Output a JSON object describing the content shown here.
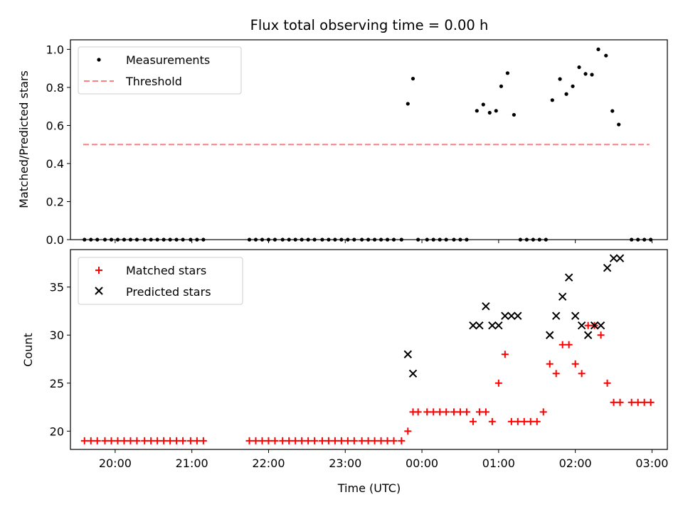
{
  "chart_data": [
    {
      "type": "scatter",
      "title": "Flux total observing time = 0.00 h",
      "xlabel": "",
      "ylabel": "Matched/Predicted stars",
      "ylim": [
        0,
        1.05
      ],
      "yticks": [
        "0.0",
        "0.2",
        "0.4",
        "0.6",
        "0.8",
        "1.0"
      ],
      "ytick_values": [
        0,
        0.2,
        0.4,
        0.6,
        0.8,
        1.0
      ],
      "legend": {
        "position": "top-left",
        "entries": [
          "Measurements",
          "Threshold"
        ]
      },
      "colors": {
        "measurements": "#000000",
        "threshold": "#ff7f7f"
      },
      "threshold": {
        "name": "Threshold",
        "value": 0.5,
        "x_start": "19:35",
        "x_end": "02:58"
      },
      "series": [
        {
          "name": "Measurements",
          "x": [
            "19:36",
            "19:41",
            "19:46",
            "19:52",
            "19:57",
            "20:02",
            "20:07",
            "20:12",
            "20:17",
            "20:23",
            "20:28",
            "20:33",
            "20:38",
            "20:43",
            "20:48",
            "20:53",
            "20:59",
            "21:04",
            "21:09",
            "21:45",
            "21:50",
            "21:55",
            "22:00",
            "22:05",
            "22:11",
            "22:16",
            "22:21",
            "22:26",
            "22:31",
            "22:36",
            "22:42",
            "22:47",
            "22:52",
            "22:57",
            "23:02",
            "23:07",
            "23:13",
            "23:18",
            "23:23",
            "23:28",
            "23:33",
            "23:38",
            "23:44",
            "23:49",
            "23:53",
            "23:57",
            "00:04",
            "00:09",
            "00:14",
            "00:19",
            "00:25",
            "00:30",
            "00:35",
            "00:43",
            "00:48",
            "00:53",
            "00:58",
            "01:02",
            "01:07",
            "01:12",
            "01:17",
            "01:22",
            "01:27",
            "01:32",
            "01:37",
            "01:42",
            "01:48",
            "01:53",
            "01:58",
            "02:03",
            "02:08",
            "02:13",
            "02:18",
            "02:24",
            "02:29",
            "02:34",
            "02:44",
            "02:49",
            "02:54",
            "02:59"
          ],
          "y": [
            0,
            0,
            0,
            0,
            0,
            0,
            0,
            0,
            0,
            0,
            0,
            0,
            0,
            0,
            0,
            0,
            0,
            0,
            0,
            0,
            0,
            0,
            0,
            0,
            0,
            0,
            0,
            0,
            0,
            0,
            0,
            0,
            0,
            0,
            0,
            0,
            0,
            0,
            0,
            0,
            0,
            0,
            0,
            0.714,
            0.846,
            0,
            0,
            0,
            0,
            0,
            0,
            0,
            0,
            0.677,
            0.71,
            0.667,
            0.677,
            0.806,
            0.875,
            0.656,
            0,
            0,
            0,
            0,
            0,
            0.733,
            0.844,
            0.765,
            0.806,
            0.906,
            0.871,
            0.867,
            1.0,
            0.967,
            0.676,
            0.605,
            0,
            0,
            0,
            0
          ]
        }
      ]
    },
    {
      "type": "scatter",
      "title": "",
      "xlabel": "Time (UTC)",
      "ylabel": "Count",
      "ylim": [
        18.1,
        38.9
      ],
      "yticks": [
        "20",
        "25",
        "30",
        "35"
      ],
      "ytick_values": [
        20,
        25,
        30,
        35
      ],
      "xticks": [
        "20:00",
        "21:00",
        "22:00",
        "23:00",
        "00:00",
        "01:00",
        "02:00",
        "03:00"
      ],
      "xtick_values": [
        "20:00",
        "21:00",
        "22:00",
        "23:00",
        "00:00",
        "01:00",
        "02:00",
        "03:00"
      ],
      "xlim": [
        "19:25",
        "03:12"
      ],
      "legend": {
        "position": "top-left",
        "entries": [
          "Matched stars",
          "Predicted stars"
        ]
      },
      "colors": {
        "matched": "#ff0000",
        "predicted": "#000000"
      },
      "series": [
        {
          "name": "Matched stars",
          "x": [
            "19:36",
            "19:41",
            "19:46",
            "19:52",
            "19:57",
            "20:02",
            "20:07",
            "20:12",
            "20:17",
            "20:23",
            "20:28",
            "20:33",
            "20:38",
            "20:43",
            "20:48",
            "20:53",
            "20:59",
            "21:04",
            "21:09",
            "21:45",
            "21:50",
            "21:55",
            "22:00",
            "22:05",
            "22:11",
            "22:16",
            "22:21",
            "22:26",
            "22:31",
            "22:36",
            "22:42",
            "22:47",
            "22:52",
            "22:57",
            "23:02",
            "23:07",
            "23:13",
            "23:18",
            "23:23",
            "23:28",
            "23:33",
            "23:38",
            "23:44",
            "23:49",
            "23:53",
            "23:57",
            "00:04",
            "00:09",
            "00:14",
            "00:19",
            "00:25",
            "00:30",
            "00:35",
            "00:40",
            "00:45",
            "00:50",
            "00:55",
            "01:00",
            "01:05",
            "01:10",
            "01:15",
            "01:20",
            "01:25",
            "01:30",
            "01:35",
            "01:40",
            "01:45",
            "01:50",
            "01:55",
            "02:00",
            "02:05",
            "02:10",
            "02:15",
            "02:20",
            "02:25",
            "02:30",
            "02:35",
            "02:44",
            "02:49",
            "02:54",
            "02:59"
          ],
          "y": [
            19,
            19,
            19,
            19,
            19,
            19,
            19,
            19,
            19,
            19,
            19,
            19,
            19,
            19,
            19,
            19,
            19,
            19,
            19,
            19,
            19,
            19,
            19,
            19,
            19,
            19,
            19,
            19,
            19,
            19,
            19,
            19,
            19,
            19,
            19,
            19,
            19,
            19,
            19,
            19,
            19,
            19,
            19,
            20,
            22,
            22,
            22,
            22,
            22,
            22,
            22,
            22,
            22,
            21,
            22,
            22,
            21,
            25,
            28,
            21,
            21,
            21,
            21,
            21,
            22,
            27,
            26,
            29,
            29,
            27,
            26,
            31,
            31,
            30,
            25,
            23,
            23,
            23,
            23,
            23,
            23
          ]
        },
        {
          "name": "Predicted stars",
          "x": [
            "23:49",
            "23:53",
            "00:40",
            "00:45",
            "00:50",
            "00:55",
            "01:00",
            "01:05",
            "01:10",
            "01:15",
            "01:40",
            "01:45",
            "01:50",
            "01:55",
            "02:00",
            "02:05",
            "02:10",
            "02:15",
            "02:20",
            "02:25",
            "02:30",
            "02:35"
          ],
          "y": [
            28,
            26,
            31,
            31,
            33,
            31,
            31,
            32,
            32,
            32,
            30,
            32,
            34,
            36,
            32,
            31,
            30,
            31,
            31,
            37,
            38,
            38
          ]
        }
      ]
    }
  ]
}
